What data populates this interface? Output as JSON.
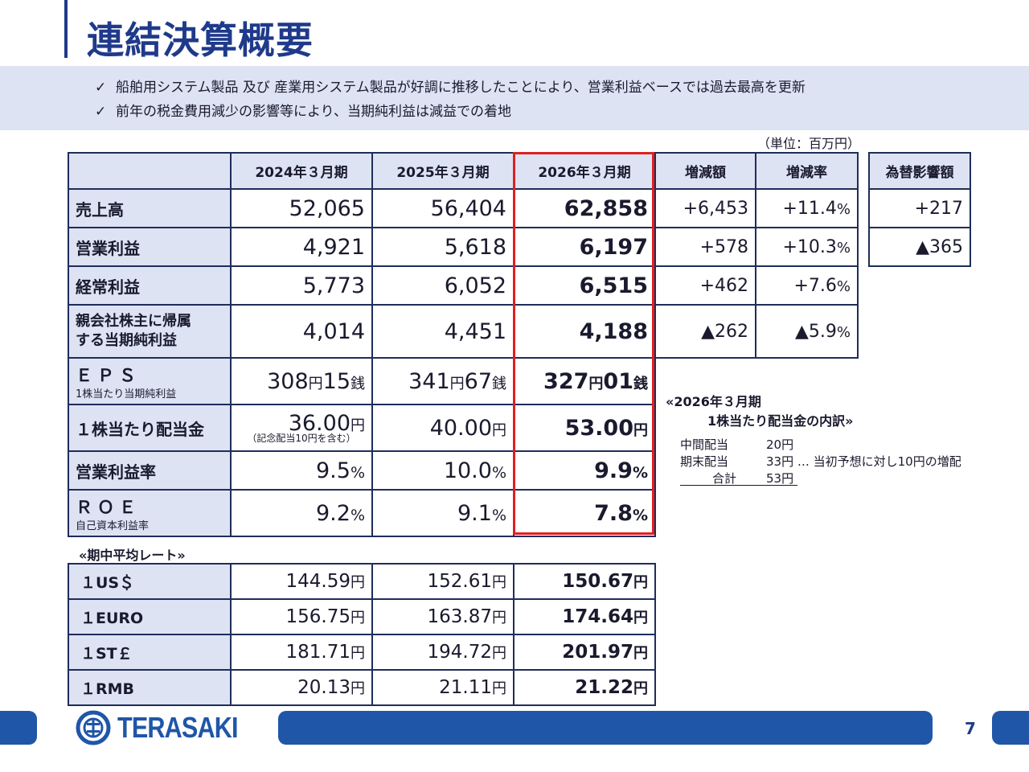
{
  "title": "連結決算概要",
  "bullets": [
    "船舶用システム製品 及び 産業用システム製品が好調に推移したことにより、営業利益ベースでは過去最高を更新",
    "前年の税金費用減少の影響等により、当期純利益は減益での着地"
  ],
  "bullet_mark": "✓",
  "unit": "（単位：百万円）",
  "headers": [
    "2024年３月期",
    "2025年３月期",
    "2026年３月期",
    "増減額",
    "増減率"
  ],
  "fx_header": "為替影響額",
  "rows": [
    {
      "label": "売上高",
      "v1": "52,065",
      "v2": "56,404",
      "v3": "62,858",
      "diff": "+6,453",
      "rate": "+11.4",
      "fx": "+217"
    },
    {
      "label": "営業利益",
      "v1": "4,921",
      "v2": "5,618",
      "v3": "6,197",
      "diff": "+578",
      "rate": "+10.3",
      "fx": "▲365"
    },
    {
      "label": "経常利益",
      "v1": "5,773",
      "v2": "6,052",
      "v3": "6,515",
      "diff": "+462",
      "rate": "+7.6"
    },
    {
      "label1": "親会社株主に帰属",
      "label2": "する当期純利益",
      "v1": "4,014",
      "v2": "4,451",
      "v3": "4,188",
      "diff": "▲262",
      "rate": "▲5.9"
    }
  ],
  "pct": "%",
  "eps": {
    "label": "ＥＰＳ",
    "sublabel": "1株当たり当期純利益",
    "v1a": "308",
    "v1b": "15",
    "v2a": "341",
    "v2b": "67",
    "v3a": "327",
    "v3b": "01",
    "yen": "円",
    "sen": "銭"
  },
  "dps": {
    "label": "１株当たり配当金",
    "v1": "36.00",
    "v1_note": "（記念配当10円を含む）",
    "v2": "40.00",
    "v3": "53.00",
    "yen": "円"
  },
  "opm": {
    "label": "営業利益率",
    "v1": "9.5",
    "v2": "10.0",
    "v3": "9.9",
    "pct": "%"
  },
  "roe": {
    "label": "ＲＯＥ",
    "sublabel": "自己資本利益率",
    "v1": "9.2",
    "v2": "9.1",
    "v3": "7.8",
    "pct": "%"
  },
  "rates_title": "«期中平均レート»",
  "rates": [
    {
      "label": "１US＄",
      "v1": "144.59",
      "v2": "152.61",
      "v3": "150.67"
    },
    {
      "label": "１EURO",
      "v1": "156.75",
      "v2": "163.87",
      "v3": "174.64"
    },
    {
      "label": "１ST￡",
      "v1": "181.71",
      "v2": "194.72",
      "v3": "201.97"
    },
    {
      "label": "１RMB",
      "v1": "20.13",
      "v2": "21.11",
      "v3": "21.22"
    }
  ],
  "yen": "円",
  "dividend_breakdown": {
    "title1": "«2026年３月期",
    "title2": "1株当たり配当金の内訳»",
    "interim_label": "中間配当",
    "interim_value": "20円",
    "final_label": "期末配当",
    "final_value": "33円",
    "final_note": "… 当初予想に対し10円の増配",
    "total_label": "合計",
    "total_value": "53円"
  },
  "logo_text": "TERASAKI",
  "page_number": "7",
  "colors": {
    "brand": "#1f3a8a",
    "band": "#dde3f3",
    "highlight": "#e02020",
    "footer": "#1f56a8"
  }
}
